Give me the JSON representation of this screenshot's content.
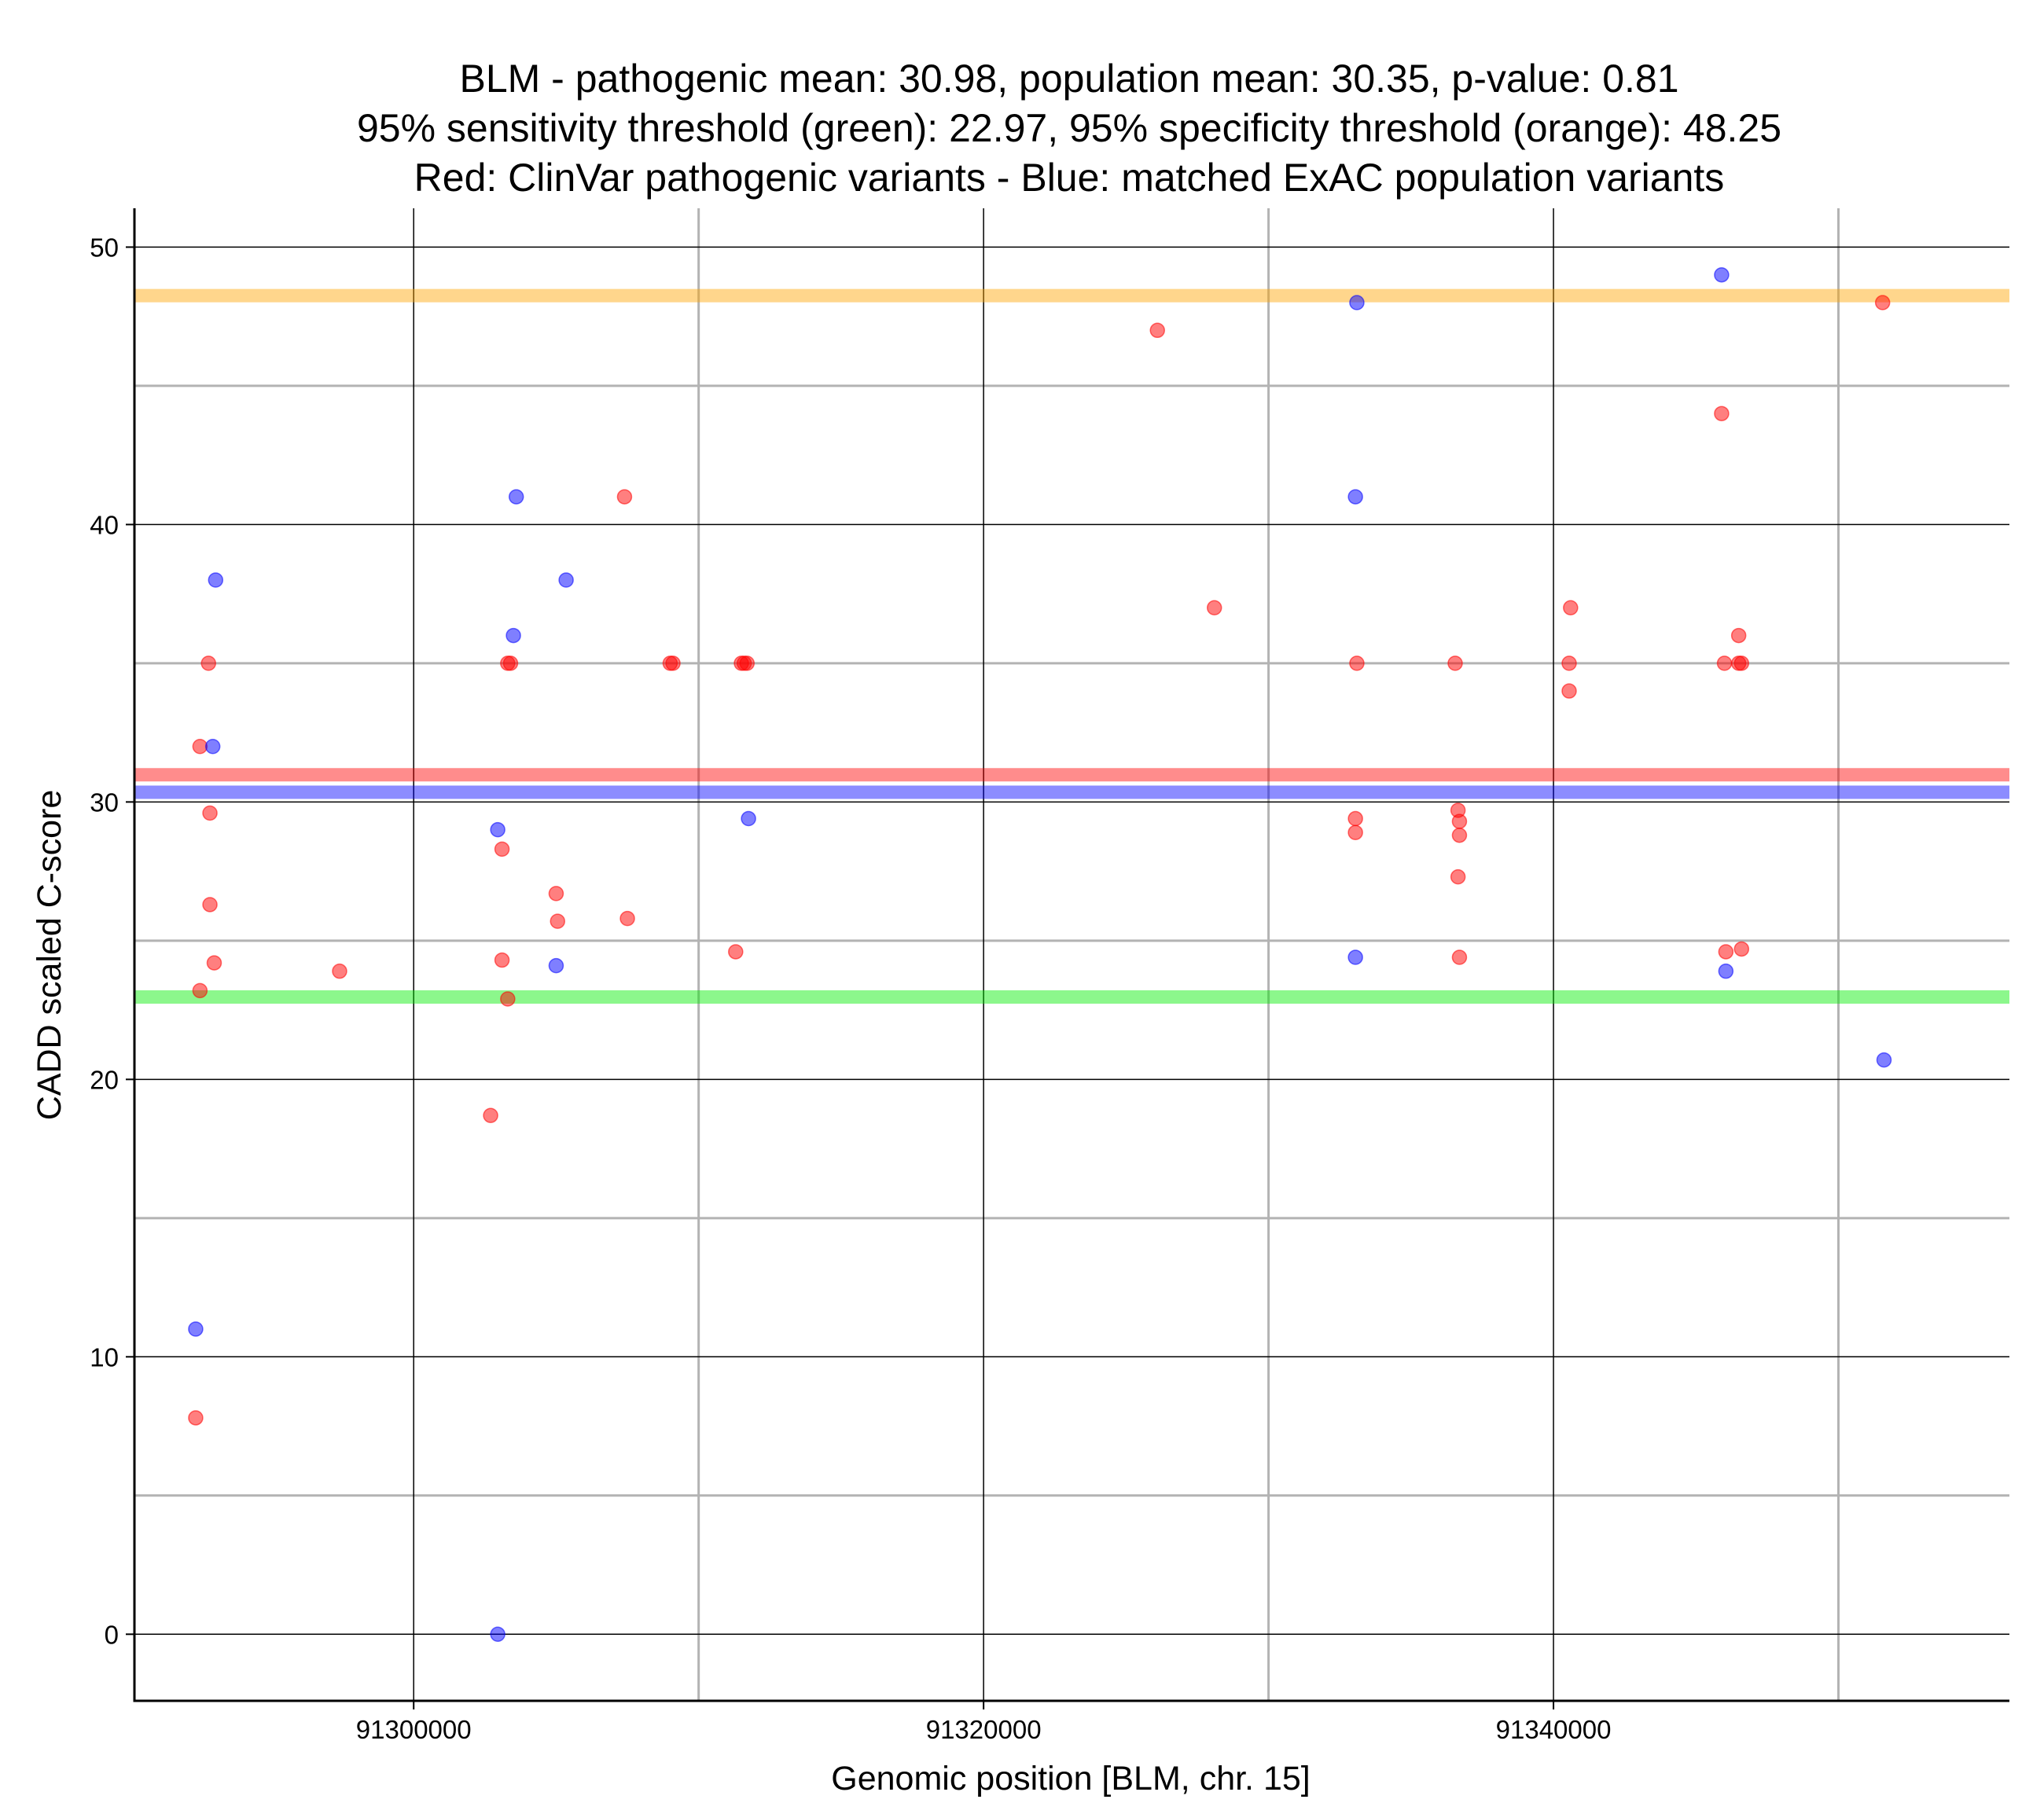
{
  "chart_data": {
    "type": "scatter",
    "title_lines": [
      "BLM - pathogenic mean: 30.98, population mean: 30.35, p-value: 0.81",
      "95% sensitivity threshold (green): 22.97, 95% specificity threshold (orange): 48.25",
      "Red: ClinVar pathogenic variants - Blue: matched ExAC population variants"
    ],
    "xlabel": "Genomic position [BLM, chr. 15]",
    "ylabel": "CADD scaled C-score",
    "xlim": [
      91290200,
      91356000
    ],
    "ylim": [
      -2.4,
      51.4
    ],
    "x_ticks": [
      91300000,
      91320000,
      91340000
    ],
    "x_tick_labels": [
      "91300000",
      "91320000",
      "91340000"
    ],
    "y_ticks": [
      0,
      10,
      20,
      30,
      40,
      50
    ],
    "y_tick_labels": [
      "0",
      "10",
      "20",
      "30",
      "40",
      "50"
    ],
    "x_minor_gridlines": [
      91290000,
      91310000,
      91330000,
      91350000
    ],
    "y_minor_gridlines": [
      5,
      15,
      25,
      35,
      45
    ],
    "grid": true,
    "colors": {
      "pathogenic": "#ff0000",
      "population": "#0000ff",
      "sensitivity": "#00ee00",
      "specificity": "#ffa500",
      "major_grid": "#000000",
      "minor_grid": "#b3b3b3"
    },
    "hlines": [
      {
        "name": "pathogenic mean",
        "y": 30.98,
        "color": "#ff0000"
      },
      {
        "name": "population mean",
        "y": 30.35,
        "color": "#0000ff"
      },
      {
        "name": "95% sensitivity threshold",
        "y": 22.97,
        "color": "#00ee00"
      },
      {
        "name": "95% specificity threshold",
        "y": 48.25,
        "color": "#ffa500"
      }
    ],
    "series": [
      {
        "name": "ClinVar pathogenic variants",
        "color": "#ff0000",
        "points": [
          [
            91292800,
            35
          ],
          [
            91292500,
            32
          ],
          [
            91292850,
            29.6
          ],
          [
            91292850,
            26.3
          ],
          [
            91293000,
            24.2
          ],
          [
            91292500,
            23.2
          ],
          [
            91292350,
            7.8
          ],
          [
            91297400,
            23.9
          ],
          [
            91303300,
            35
          ],
          [
            91303400,
            35
          ],
          [
            91303100,
            28.3
          ],
          [
            91303100,
            24.3
          ],
          [
            91303300,
            22.9
          ],
          [
            91302700,
            18.7
          ],
          [
            91305000,
            26.7
          ],
          [
            91305050,
            25.7
          ],
          [
            91307400,
            41
          ],
          [
            91307500,
            25.8
          ],
          [
            91309000,
            35
          ],
          [
            91309100,
            35
          ],
          [
            91311500,
            35
          ],
          [
            91311600,
            35
          ],
          [
            91311700,
            35
          ],
          [
            91311300,
            24.6
          ],
          [
            91326100,
            47
          ],
          [
            91328100,
            37
          ],
          [
            91333100,
            35
          ],
          [
            91333050,
            29.4
          ],
          [
            91333050,
            28.9
          ],
          [
            91336550,
            35
          ],
          [
            91336650,
            29.7
          ],
          [
            91336700,
            29.3
          ],
          [
            91336700,
            28.8
          ],
          [
            91336650,
            27.3
          ],
          [
            91336700,
            24.4
          ],
          [
            91340600,
            37
          ],
          [
            91340550,
            35
          ],
          [
            91340550,
            34
          ],
          [
            91345900,
            44
          ],
          [
            91346000,
            35
          ],
          [
            91346500,
            35
          ],
          [
            91346600,
            35
          ],
          [
            91346500,
            36
          ],
          [
            91346050,
            24.6
          ],
          [
            91346600,
            24.7
          ],
          [
            91351550,
            48
          ]
        ]
      },
      {
        "name": "matched ExAC population variants",
        "color": "#0000ff",
        "points": [
          [
            91293050,
            38
          ],
          [
            91292950,
            32
          ],
          [
            91292350,
            11
          ],
          [
            91303600,
            41
          ],
          [
            91303500,
            36
          ],
          [
            91302950,
            29
          ],
          [
            91305350,
            38
          ],
          [
            91305000,
            24.1
          ],
          [
            91302950,
            0
          ],
          [
            91311750,
            29.4
          ],
          [
            91333100,
            48
          ],
          [
            91333050,
            41
          ],
          [
            91333050,
            24.4
          ],
          [
            91345900,
            49
          ],
          [
            91346050,
            23.9
          ],
          [
            91351600,
            20.7
          ]
        ]
      }
    ]
  }
}
